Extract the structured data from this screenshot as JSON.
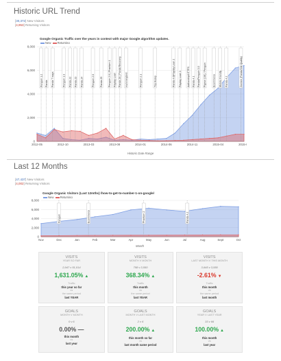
{
  "section1": {
    "title": "Historic URL Trend",
    "account": "A",
    "new_visitors": "30,372",
    "new_label": "New Visitors",
    "returning_visitors": "4,953",
    "returning_label": "Returning Visitors"
  },
  "chart1": {
    "title": "Google Organic Traffic over the years in context with major Google algorithm updates.",
    "legend": [
      "New",
      "Returning"
    ],
    "xlabel": "Historic Date Range",
    "yticks": [
      "8,000",
      "6,000",
      "4,000",
      "2,000",
      "0"
    ],
    "xticks": [
      "2012-05",
      "2012-10",
      "2013-03",
      "2013-08",
      "2014-01",
      "2014-06",
      "2014-11",
      "2015-04",
      "2015-09"
    ],
    "updates": [
      "Penguin 1.2",
      "Panda",
      "Panda 7 ways",
      "Penguin 1.3",
      "Panda 22",
      "Panda 23",
      "Panda 24",
      "Penguin 2.0",
      "Panda 25",
      "Penguin 2.0 | Phantom 1",
      "Payday Loan",
      "Panda 26 | Panda Recovery",
      "Hummingbird",
      "Penguin 2.1",
      "Top Heavy",
      "Panda 4.0|Payday Loan 2",
      "Payday Loan 3",
      "Authorship/HTTPS",
      "Panda 4.1",
      "Panda/Penguin 3.0",
      "Pigeon (UK) / Penguin",
      "Ecommerce",
      "Mobile Friendly",
      "Panda 4.2",
      "Zombie (Panda/Site Quality)"
    ]
  },
  "section2": {
    "title": "Last 12 Months",
    "account": "A",
    "new_visitors": "47,437",
    "new_label": "New Visitors",
    "returning_visitors": "4,002",
    "returning_label": "Returning Visitors"
  },
  "chart2": {
    "title": "Google Organic Visitors (Last 12mths) /how-to-get-to-number-1-on-google/",
    "legend": [
      "New",
      "Returning"
    ],
    "xlabel": "Month",
    "yticks": [
      "8,000",
      "6,000",
      "4,000",
      "2,000",
      "0"
    ],
    "xticks": [
      "Nov",
      "Dec",
      "Jan",
      "Feb",
      "Mar",
      "Apr",
      "May",
      "Jun",
      "Jul",
      "Aug",
      "Sept",
      "Oct"
    ],
    "updates": [
      "Penguin",
      "Ecommerce",
      "Phantom 2",
      "Panda 4.2"
    ]
  },
  "cards": [
    {
      "title": "Visits",
      "sub": "Year so far",
      "ratio": "2,947 v 51,014",
      "value": "1,631.05%",
      "tone": "pos",
      "line1": "Traffic",
      "line2": "this year so far",
      "line3": "vs",
      "line4": "the same period",
      "line5": "last YEAR"
    },
    {
      "title": "Visits",
      "sub": "Month v Month",
      "ratio": "758 v 3,550",
      "value": "368.34%",
      "tone": "pos",
      "line1": "Traffic",
      "line2": "this month",
      "line3": "vs",
      "line4": "the same period",
      "line5": "last YEAR"
    },
    {
      "title": "Visits",
      "sub": "Last month v this month",
      "ratio": "3,645 v 3,550",
      "value": "-2.61%",
      "tone": "neg",
      "line1": "Traffic",
      "line2": "this month",
      "line3": "vs",
      "line4": "the same period",
      "line5": "last month"
    },
    {
      "title": "Goals",
      "sub": "Month v Month",
      "ratio": "0 v 6",
      "value": "0.00% —",
      "tone": "neu",
      "line1": "",
      "line2": "this month",
      "line3": "vs",
      "line4": "",
      "line5": "last year"
    },
    {
      "title": "Goals",
      "sub": "Month v Last Month",
      "ratio": "2 v 6",
      "value": "200.00%",
      "tone": "pos",
      "line1": "",
      "line2": "this month so far",
      "line3": "vs",
      "line4": "",
      "line5": "last month same period"
    },
    {
      "title": "Goals",
      "sub": "Year v Last Year",
      "ratio": "33 v 66",
      "value": "100.00%",
      "tone": "pos",
      "line1": "",
      "line2": "this month",
      "line3": "vs",
      "line4": "",
      "line5": "last year"
    }
  ],
  "chart_data": [
    {
      "type": "area",
      "title": "Google Organic Traffic over the years in context with major Google algorithm updates.",
      "xlabel": "Historic Date Range",
      "ylabel": "",
      "ylim": [
        0,
        8000
      ],
      "x": [
        "2012-05",
        "2012-07",
        "2012-09",
        "2012-10",
        "2012-12",
        "2013-02",
        "2013-03",
        "2013-05",
        "2013-07",
        "2013-08",
        "2013-10",
        "2013-12",
        "2014-01",
        "2014-03",
        "2014-05",
        "2014-06",
        "2014-08",
        "2014-10",
        "2014-11",
        "2015-01",
        "2015-03",
        "2015-04",
        "2015-06",
        "2015-08",
        "2015-09"
      ],
      "series": [
        {
          "name": "New",
          "color": "#7d9ee3",
          "values": [
            700,
            500,
            1100,
            250,
            150,
            100,
            250,
            200,
            350,
            100,
            150,
            100,
            200,
            150,
            200,
            250,
            700,
            1500,
            2200,
            3100,
            3900,
            4500,
            5400,
            6200,
            6400
          ]
        },
        {
          "name": "Returning",
          "color": "#e06666",
          "values": [
            600,
            300,
            1000,
            800,
            900,
            850,
            500,
            700,
            1100,
            200,
            500,
            150,
            100,
            80,
            50,
            60,
            80,
            100,
            150,
            200,
            250,
            300,
            450,
            600,
            600
          ]
        }
      ],
      "grid": true,
      "legend": "top-left"
    },
    {
      "type": "area",
      "title": "Google Organic Visitors (Last 12mths) /how-to-get-to-number-1-on-google/",
      "xlabel": "Month",
      "ylabel": "",
      "ylim": [
        0,
        8000
      ],
      "categories": [
        "Nov",
        "Dec",
        "Jan",
        "Feb",
        "Mar",
        "Apr",
        "May",
        "Jun",
        "Jul",
        "Aug",
        "Sept",
        "Oct"
      ],
      "series": [
        {
          "name": "New",
          "color": "#7d9ee3",
          "values": [
            2900,
            3400,
            3800,
            4400,
            4900,
            5900,
            6300,
            5900,
            5600,
            6200,
            6700,
            6600
          ]
        },
        {
          "name": "Returning",
          "color": "#e06666",
          "values": [
            200,
            250,
            280,
            300,
            320,
            330,
            340,
            350,
            380,
            400,
            420,
            420
          ]
        }
      ],
      "grid": true,
      "legend": "top-left"
    }
  ]
}
